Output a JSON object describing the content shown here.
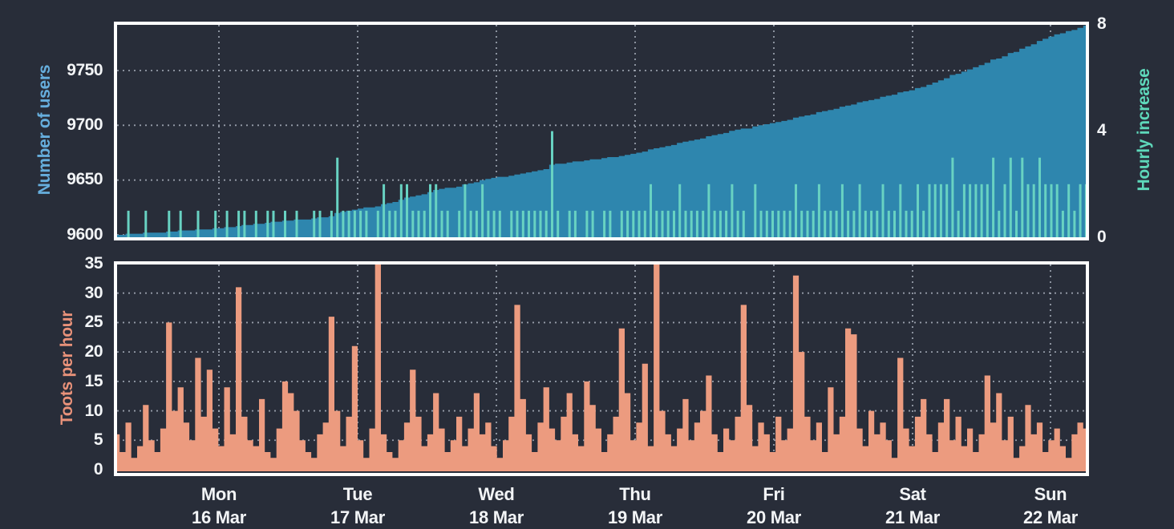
{
  "page": {
    "background": "#282d39",
    "text_color": "#f2f4f6",
    "gridline_color": "#aab1bd",
    "border_color": "#ffffff"
  },
  "users_chart": {
    "ylabel": "Number of users",
    "ylabel_color": "#66aedd",
    "yticks_left": [
      "9750",
      "9700",
      "9650",
      "9600"
    ],
    "y2label": "Hourly increase",
    "y2label_color": "#5ed8ba",
    "yticks_right": [
      "8",
      "4",
      "0"
    ]
  },
  "toots_chart": {
    "ylabel": "Toots per hour",
    "ylabel_color": "#e9927a",
    "yticks": [
      "35",
      "30",
      "25",
      "20",
      "15",
      "10",
      "5",
      "0"
    ]
  },
  "x_axis": {
    "days": [
      {
        "weekday": "Mon",
        "date": "16 Mar"
      },
      {
        "weekday": "Tue",
        "date": "17 Mar"
      },
      {
        "weekday": "Wed",
        "date": "18 Mar"
      },
      {
        "weekday": "Thu",
        "date": "19 Mar"
      },
      {
        "weekday": "Fri",
        "date": "20 Mar"
      },
      {
        "weekday": "Sat",
        "date": "21 Mar"
      },
      {
        "weekday": "Sun",
        "date": "22 Mar"
      }
    ]
  },
  "chart_data": [
    {
      "type": "area",
      "title": "",
      "ylabel": "Number of users",
      "y2label": "Hourly increase",
      "x": {
        "n_points": 168,
        "resolution": "hourly",
        "span_days": 7,
        "day_tick_labels": [
          "Mon 16 Mar",
          "Tue 17 Mar",
          "Wed 18 Mar",
          "Thu 19 Mar",
          "Fri 20 Mar",
          "Sat 21 Mar",
          "Sun 22 Mar"
        ]
      },
      "ylim_left": [
        9596,
        9793
      ],
      "yticks_left": [
        9600,
        9650,
        9700,
        9750
      ],
      "ylim_right": [
        0,
        8
      ],
      "yticks_right": [
        0,
        4,
        8
      ],
      "grid": "dotted",
      "series": [
        {
          "name": "Number of users",
          "axis": "left",
          "render": "step-area",
          "color": "#2e86ae",
          "start": 9600,
          "end": 9791,
          "derivation": "start + cumulative sum of the Hourly increase series"
        },
        {
          "name": "Hourly increase",
          "axis": "right",
          "render": "bar",
          "color": "#68d2c2",
          "values": [
            0,
            0,
            1,
            0,
            0,
            1,
            0,
            0,
            0,
            1,
            0,
            1,
            0,
            0,
            1,
            0,
            0,
            1,
            0,
            1,
            0,
            1,
            1,
            0,
            1,
            0,
            1,
            1,
            0,
            1,
            0,
            1,
            0,
            0,
            1,
            1,
            0,
            1,
            3,
            1,
            1,
            1,
            1,
            1,
            0,
            1,
            2,
            1,
            1,
            2,
            2,
            1,
            1,
            1,
            2,
            2,
            1,
            1,
            0,
            1,
            2,
            1,
            1,
            2,
            1,
            1,
            1,
            0,
            1,
            1,
            1,
            1,
            1,
            1,
            1,
            4,
            1,
            0,
            1,
            1,
            0,
            1,
            1,
            0,
            1,
            1,
            0,
            1,
            1,
            1,
            1,
            1,
            2,
            1,
            1,
            1,
            1,
            2,
            1,
            1,
            1,
            1,
            2,
            1,
            1,
            1,
            2,
            1,
            1,
            0,
            2,
            1,
            1,
            1,
            1,
            1,
            1,
            2,
            1,
            1,
            1,
            2,
            1,
            1,
            1,
            2,
            1,
            1,
            2,
            1,
            1,
            1,
            2,
            1,
            1,
            2,
            1,
            1,
            2,
            1,
            2,
            2,
            2,
            2,
            3,
            1,
            2,
            2,
            2,
            2,
            2,
            3,
            1,
            2,
            3,
            1,
            3,
            2,
            2,
            3,
            2,
            2,
            2,
            1,
            2,
            1,
            2,
            2
          ]
        }
      ]
    },
    {
      "type": "area",
      "title": "",
      "ylabel": "Toots per hour",
      "x": {
        "n_points": 168,
        "resolution": "hourly",
        "span_days": 7,
        "day_tick_labels": [
          "Mon 16 Mar",
          "Tue 17 Mar",
          "Wed 18 Mar",
          "Thu 19 Mar",
          "Fri 20 Mar",
          "Sat 21 Mar",
          "Sun 22 Mar"
        ]
      },
      "ylim": [
        0,
        35
      ],
      "yticks": [
        0,
        5,
        10,
        15,
        20,
        25,
        30,
        35
      ],
      "grid": "dotted",
      "series": [
        {
          "name": "Toots per hour",
          "render": "step-area",
          "color": "#ec9b7f",
          "values": [
            6,
            3,
            8,
            2,
            4,
            11,
            5,
            3,
            7,
            25,
            10,
            14,
            8,
            5,
            19,
            9,
            17,
            7,
            4,
            14,
            6,
            31,
            9,
            5,
            4,
            12,
            3,
            2,
            7,
            15,
            13,
            10,
            5,
            3,
            2,
            6,
            8,
            26,
            10,
            4,
            9,
            21,
            5,
            2,
            7,
            35,
            6,
            3,
            2,
            5,
            8,
            17,
            9,
            4,
            6,
            13,
            7,
            3,
            5,
            9,
            4,
            7,
            13,
            6,
            8,
            4,
            2,
            5,
            9,
            28,
            12,
            6,
            3,
            8,
            14,
            7,
            5,
            9,
            13,
            6,
            4,
            15,
            11,
            7,
            3,
            6,
            9,
            24,
            13,
            5,
            8,
            18,
            4,
            35,
            10,
            6,
            4,
            7,
            12,
            5,
            8,
            10,
            16,
            6,
            3,
            7,
            5,
            9,
            28,
            11,
            4,
            8,
            6,
            3,
            9,
            5,
            7,
            33,
            20,
            9,
            5,
            8,
            3,
            14,
            6,
            9,
            24,
            23,
            7,
            4,
            10,
            6,
            8,
            5,
            2,
            19,
            7,
            4,
            9,
            12,
            6,
            3,
            8,
            12,
            5,
            9,
            4,
            7,
            3,
            6,
            16,
            8,
            13,
            5,
            9,
            2,
            4,
            11,
            6,
            8,
            3,
            5,
            7,
            4,
            2,
            6,
            8,
            7
          ]
        }
      ]
    }
  ]
}
